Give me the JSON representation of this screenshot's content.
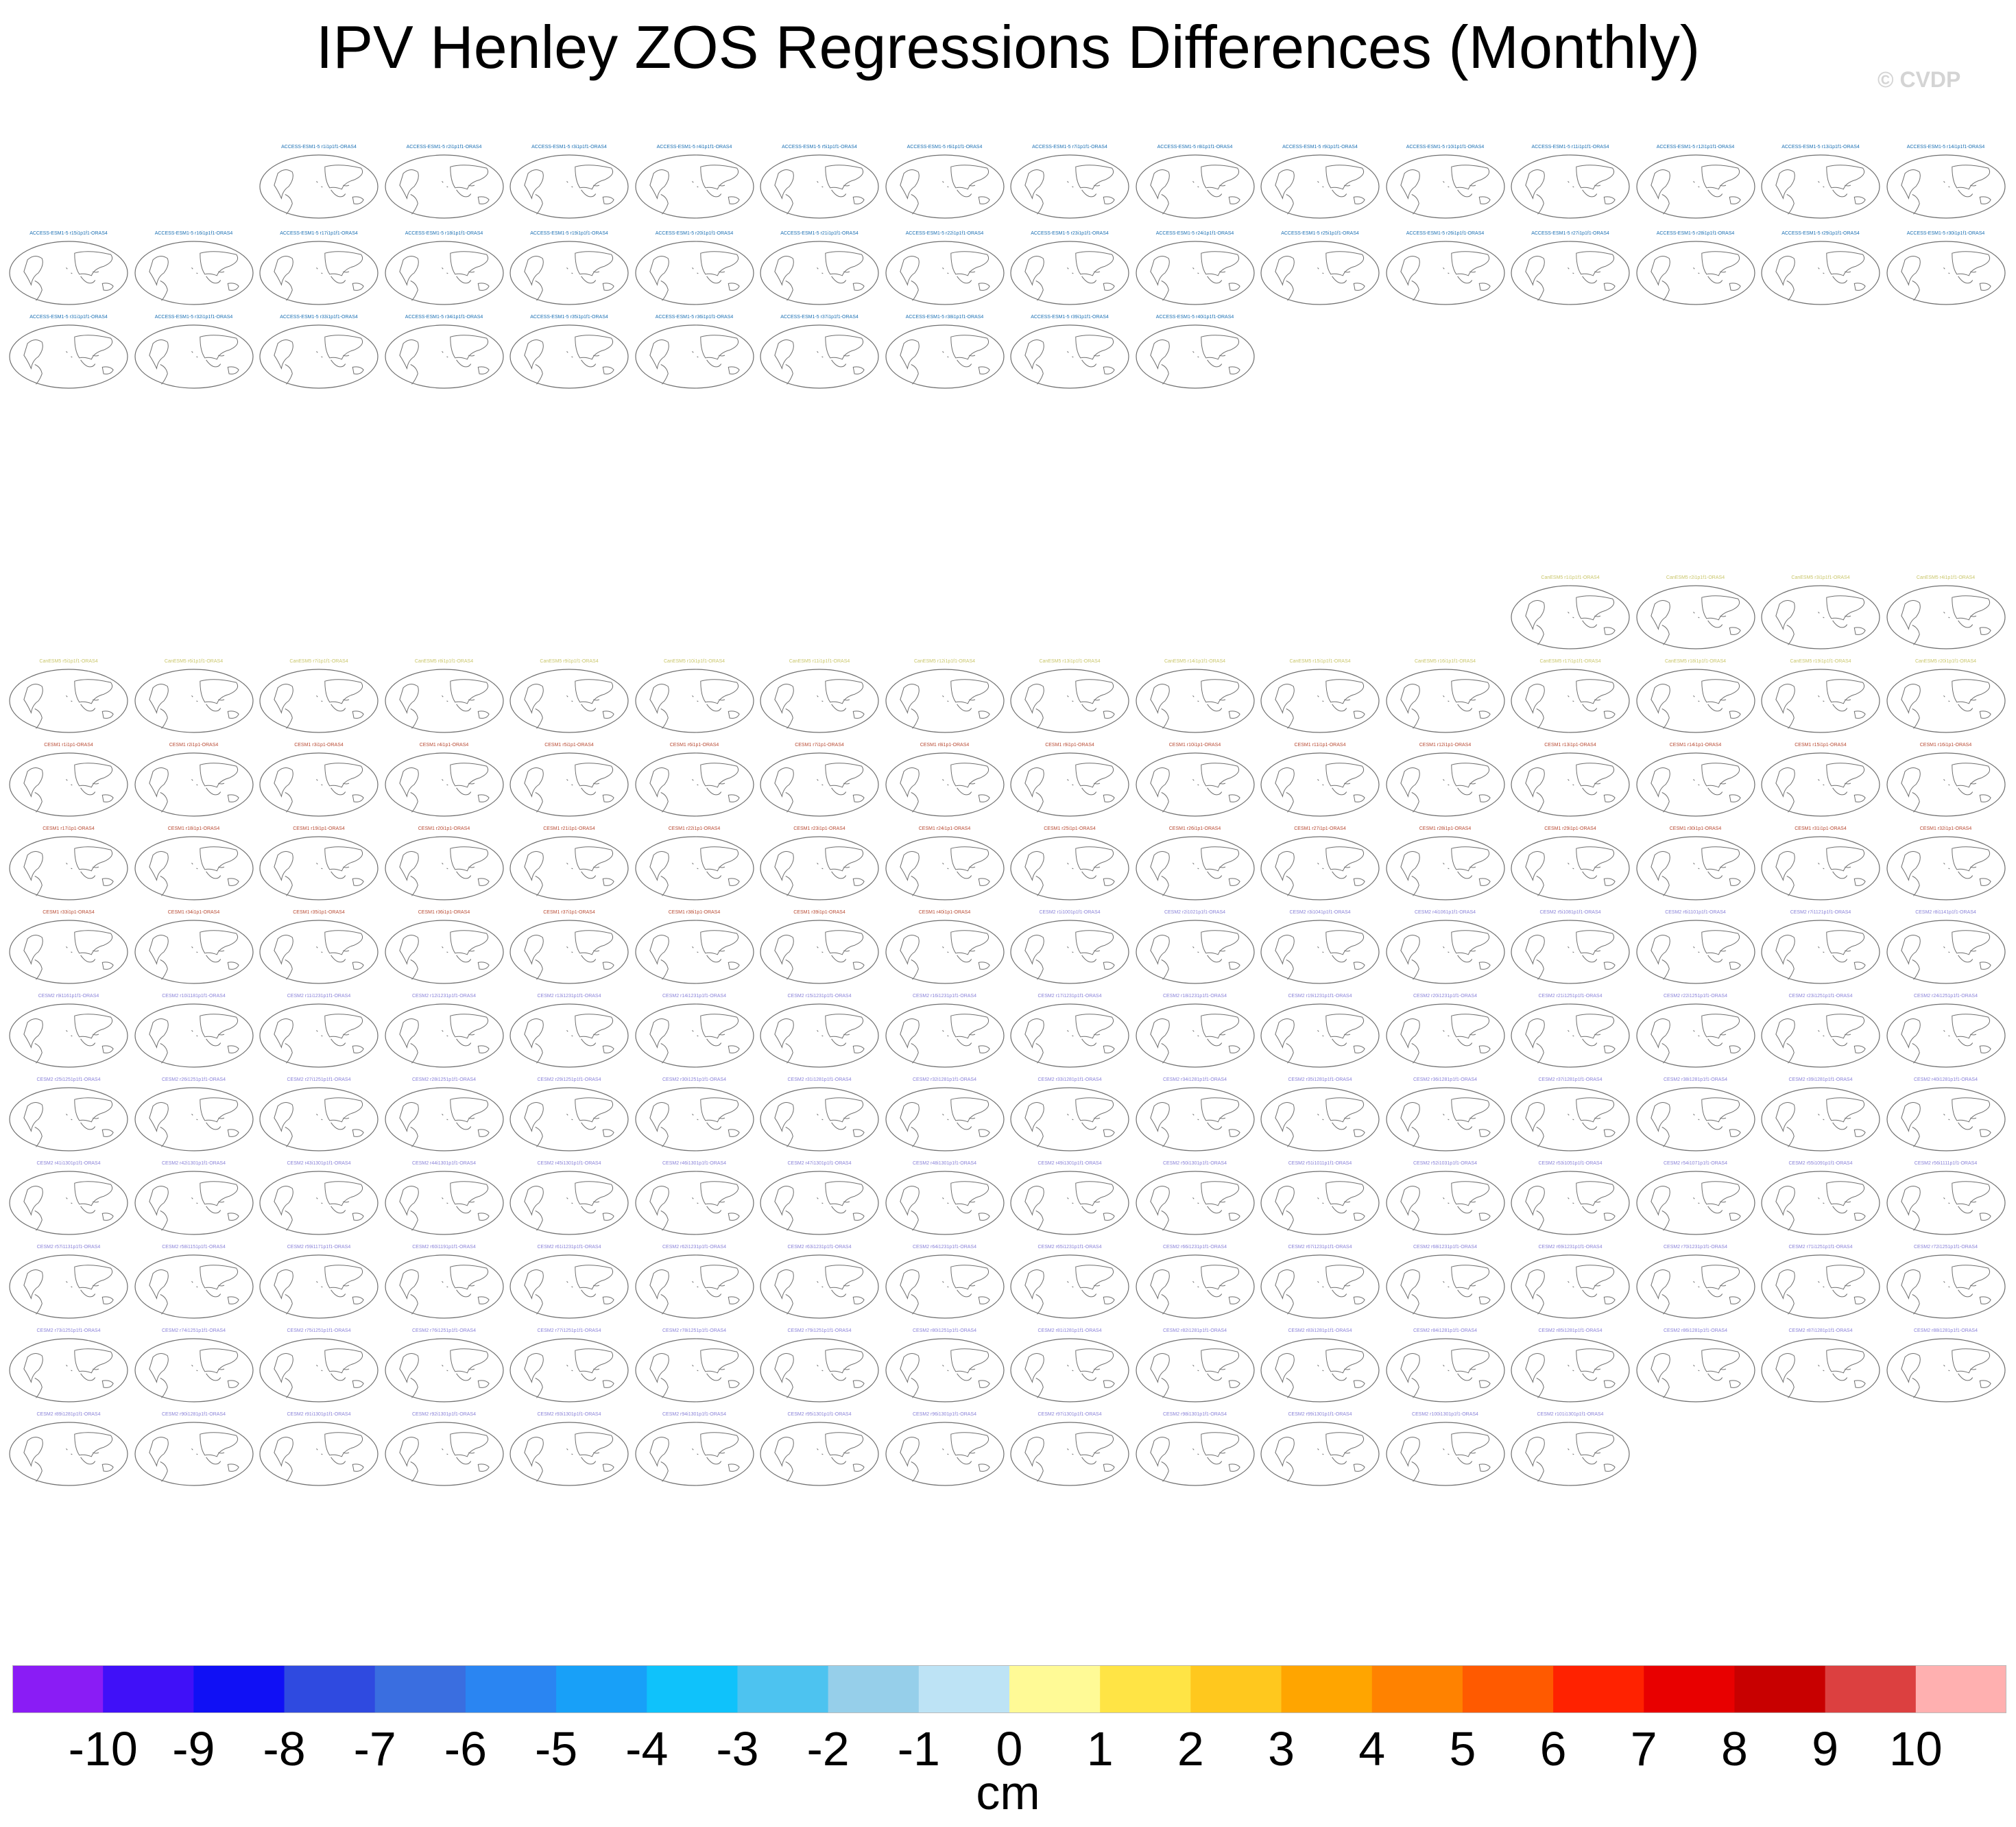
{
  "title": "IPV Henley ZOS Regressions Differences (Monthly)",
  "watermark": "© CVDP",
  "colors": {
    "access": "#1a6fb3",
    "canesm": "#c9c66a",
    "cesm1": "#b84a33",
    "cesm2": "#8a82d8",
    "coastline": "#6f6f6f"
  },
  "panel_groups": [
    {
      "model": "ACCESS-ESM1-5",
      "color_key": "access",
      "count": 40
    },
    {
      "model": "CanESM5",
      "color_key": "canesm",
      "count": 20
    },
    {
      "model": "CESM1",
      "color_key": "cesm1",
      "count": 40
    },
    {
      "model": "CESM2",
      "color_key": "cesm2",
      "count": 101
    }
  ],
  "panel_labels": [
    "ACCESS-ESM1-5 r1i1p1f1-ORAS4",
    "ACCESS-ESM1-5 r2i1p1f1-ORAS4",
    "ACCESS-ESM1-5 r3i1p1f1-ORAS4",
    "ACCESS-ESM1-5 r4i1p1f1-ORAS4",
    "ACCESS-ESM1-5 r5i1p1f1-ORAS4",
    "ACCESS-ESM1-5 r6i1p1f1-ORAS4",
    "ACCESS-ESM1-5 r7i1p1f1-ORAS4",
    "ACCESS-ESM1-5 r8i1p1f1-ORAS4",
    "ACCESS-ESM1-5 r9i1p1f1-ORAS4",
    "ACCESS-ESM1-5 r10i1p1f1-ORAS4",
    "ACCESS-ESM1-5 r11i1p1f1-ORAS4",
    "ACCESS-ESM1-5 r12i1p1f1-ORAS4",
    "ACCESS-ESM1-5 r13i1p1f1-ORAS4",
    "ACCESS-ESM1-5 r14i1p1f1-ORAS4",
    "ACCESS-ESM1-5 r15i1p1f1-ORAS4",
    "ACCESS-ESM1-5 r16i1p1f1-ORAS4",
    "ACCESS-ESM1-5 r17i1p1f1-ORAS4",
    "ACCESS-ESM1-5 r18i1p1f1-ORAS4",
    "ACCESS-ESM1-5 r19i1p1f1-ORAS4",
    "ACCESS-ESM1-5 r20i1p1f1-ORAS4",
    "ACCESS-ESM1-5 r21i1p1f1-ORAS4",
    "ACCESS-ESM1-5 r22i1p1f1-ORAS4",
    "ACCESS-ESM1-5 r23i1p1f1-ORAS4",
    "ACCESS-ESM1-5 r24i1p1f1-ORAS4",
    "ACCESS-ESM1-5 r25i1p1f1-ORAS4",
    "ACCESS-ESM1-5 r26i1p1f1-ORAS4",
    "ACCESS-ESM1-5 r27i1p1f1-ORAS4",
    "ACCESS-ESM1-5 r28i1p1f1-ORAS4",
    "ACCESS-ESM1-5 r29i1p1f1-ORAS4",
    "ACCESS-ESM1-5 r30i1p1f1-ORAS4",
    "ACCESS-ESM1-5 r31i1p1f1-ORAS4",
    "ACCESS-ESM1-5 r32i1p1f1-ORAS4",
    "ACCESS-ESM1-5 r33i1p1f1-ORAS4",
    "ACCESS-ESM1-5 r34i1p1f1-ORAS4",
    "ACCESS-ESM1-5 r35i1p1f1-ORAS4",
    "ACCESS-ESM1-5 r36i1p1f1-ORAS4",
    "ACCESS-ESM1-5 r37i1p1f1-ORAS4",
    "ACCESS-ESM1-5 r38i1p1f1-ORAS4",
    "ACCESS-ESM1-5 r39i1p1f1-ORAS4",
    "ACCESS-ESM1-5 r40i1p1f1-ORAS4",
    "CanESM5 r1i1p1f1-ORAS4",
    "CanESM5 r2i1p1f1-ORAS4",
    "CanESM5 r3i1p1f1-ORAS4",
    "CanESM5 r4i1p1f1-ORAS4",
    "CanESM5 r5i1p1f1-ORAS4",
    "CanESM5 r6i1p1f1-ORAS4",
    "CanESM5 r7i1p1f1-ORAS4",
    "CanESM5 r8i1p1f1-ORAS4",
    "CanESM5 r9i1p1f1-ORAS4",
    "CanESM5 r10i1p1f1-ORAS4",
    "CanESM5 r11i1p1f1-ORAS4",
    "CanESM5 r12i1p1f1-ORAS4",
    "CanESM5 r13i1p1f1-ORAS4",
    "CanESM5 r14i1p1f1-ORAS4",
    "CanESM5 r15i1p1f1-ORAS4",
    "CanESM5 r16i1p1f1-ORAS4",
    "CanESM5 r17i1p1f1-ORAS4",
    "CanESM5 r18i1p1f1-ORAS4",
    "CanESM5 r19i1p1f1-ORAS4",
    "CanESM5 r20i1p1f1-ORAS4",
    "CESM1 r1i1p1-ORAS4",
    "CESM1 r2i1p1-ORAS4",
    "CESM1 r3i1p1-ORAS4",
    "CESM1 r4i1p1-ORAS4",
    "CESM1 r5i1p1-ORAS4",
    "CESM1 r6i1p1-ORAS4",
    "CESM1 r7i1p1-ORAS4",
    "CESM1 r8i1p1-ORAS4",
    "CESM1 r9i1p1-ORAS4",
    "CESM1 r10i1p1-ORAS4",
    "CESM1 r11i1p1-ORAS4",
    "CESM1 r12i1p1-ORAS4",
    "CESM1 r13i1p1-ORAS4",
    "CESM1 r14i1p1-ORAS4",
    "CESM1 r15i1p1-ORAS4",
    "CESM1 r16i1p1-ORAS4",
    "CESM1 r17i1p1-ORAS4",
    "CESM1 r18i1p1-ORAS4",
    "CESM1 r19i1p1-ORAS4",
    "CESM1 r20i1p1-ORAS4",
    "CESM1 r21i1p1-ORAS4",
    "CESM1 r22i1p1-ORAS4",
    "CESM1 r23i1p1-ORAS4",
    "CESM1 r24i1p1-ORAS4",
    "CESM1 r25i1p1-ORAS4",
    "CESM1 r26i1p1-ORAS4",
    "CESM1 r27i1p1-ORAS4",
    "CESM1 r28i1p1-ORAS4",
    "CESM1 r29i1p1-ORAS4",
    "CESM1 r30i1p1-ORAS4",
    "CESM1 r31i1p1-ORAS4",
    "CESM1 r32i1p1-ORAS4",
    "CESM1 r33i1p1-ORAS4",
    "CESM1 r34i1p1-ORAS4",
    "CESM1 r35i1p1-ORAS4",
    "CESM1 r36i1p1-ORAS4",
    "CESM1 r37i1p1-ORAS4",
    "CESM1 r38i1p1-ORAS4",
    "CESM1 r39i1p1-ORAS4",
    "CESM1 r40i1p1-ORAS4",
    "CESM2 r1i1001p1f1-ORAS4",
    "CESM2 r2i1021p1f1-ORAS4",
    "CESM2 r3i1041p1f1-ORAS4",
    "CESM2 r4i1061p1f1-ORAS4",
    "CESM2 r5i1081p1f1-ORAS4",
    "CESM2 r6i1101p1f1-ORAS4",
    "CESM2 r7i1121p1f1-ORAS4",
    "CESM2 r8i1141p1f1-ORAS4",
    "CESM2 r9i1161p1f1-ORAS4",
    "CESM2 r10i1181p1f1-ORAS4",
    "CESM2 r11i1231p1f1-ORAS4",
    "CESM2 r12i1231p1f1-ORAS4",
    "CESM2 r13i1231p1f1-ORAS4",
    "CESM2 r14i1231p1f1-ORAS4",
    "CESM2 r15i1231p1f1-ORAS4",
    "CESM2 r16i1231p1f1-ORAS4",
    "CESM2 r17i1231p1f1-ORAS4",
    "CESM2 r18i1231p1f1-ORAS4",
    "CESM2 r19i1231p1f1-ORAS4",
    "CESM2 r20i1231p1f1-ORAS4",
    "CESM2 r21i1251p1f1-ORAS4",
    "CESM2 r22i1251p1f1-ORAS4",
    "CESM2 r23i1251p1f1-ORAS4",
    "CESM2 r24i1251p1f1-ORAS4",
    "CESM2 r25i1251p1f1-ORAS4",
    "CESM2 r26i1251p1f1-ORAS4",
    "CESM2 r27i1251p1f1-ORAS4",
    "CESM2 r28i1251p1f1-ORAS4",
    "CESM2 r29i1251p1f1-ORAS4",
    "CESM2 r30i1251p1f1-ORAS4",
    "CESM2 r31i1281p1f1-ORAS4",
    "CESM2 r32i1281p1f1-ORAS4",
    "CESM2 r33i1281p1f1-ORAS4",
    "CESM2 r34i1281p1f1-ORAS4",
    "CESM2 r35i1281p1f1-ORAS4",
    "CESM2 r36i1281p1f1-ORAS4",
    "CESM2 r37i1281p1f1-ORAS4",
    "CESM2 r38i1281p1f1-ORAS4",
    "CESM2 r39i1281p1f1-ORAS4",
    "CESM2 r40i1281p1f1-ORAS4",
    "CESM2 r41i1301p1f1-ORAS4",
    "CESM2 r42i1301p1f1-ORAS4",
    "CESM2 r43i1301p1f1-ORAS4",
    "CESM2 r44i1301p1f1-ORAS4",
    "CESM2 r45i1301p1f1-ORAS4",
    "CESM2 r46i1301p1f1-ORAS4",
    "CESM2 r47i1301p1f1-ORAS4",
    "CESM2 r48i1301p1f1-ORAS4",
    "CESM2 r49i1301p1f1-ORAS4",
    "CESM2 r50i1301p1f1-ORAS4",
    "CESM2 r51i1011p1f1-ORAS4",
    "CESM2 r52i1031p1f1-ORAS4",
    "CESM2 r53i1051p1f1-ORAS4",
    "CESM2 r54i1071p1f1-ORAS4",
    "CESM2 r55i1091p1f1-ORAS4",
    "CESM2 r56i1111p1f1-ORAS4",
    "CESM2 r57i1131p1f1-ORAS4",
    "CESM2 r58i1151p1f1-ORAS4",
    "CESM2 r59i1171p1f1-ORAS4",
    "CESM2 r60i1191p1f1-ORAS4",
    "CESM2 r61i1231p1f1-ORAS4",
    "CESM2 r62i1231p1f1-ORAS4",
    "CESM2 r63i1231p1f1-ORAS4",
    "CESM2 r64i1231p1f1-ORAS4",
    "CESM2 r65i1231p1f1-ORAS4",
    "CESM2 r66i1231p1f1-ORAS4",
    "CESM2 r67i1231p1f1-ORAS4",
    "CESM2 r68i1231p1f1-ORAS4",
    "CESM2 r69i1231p1f1-ORAS4",
    "CESM2 r70i1231p1f1-ORAS4",
    "CESM2 r71i1251p1f1-ORAS4",
    "CESM2 r72i1251p1f1-ORAS4",
    "CESM2 r73i1251p1f1-ORAS4",
    "CESM2 r74i1251p1f1-ORAS4",
    "CESM2 r75i1251p1f1-ORAS4",
    "CESM2 r76i1251p1f1-ORAS4",
    "CESM2 r77i1251p1f1-ORAS4",
    "CESM2 r78i1251p1f1-ORAS4",
    "CESM2 r79i1251p1f1-ORAS4",
    "CESM2 r80i1251p1f1-ORAS4",
    "CESM2 r81i1281p1f1-ORAS4",
    "CESM2 r82i1281p1f1-ORAS4",
    "CESM2 r83i1281p1f1-ORAS4",
    "CESM2 r84i1281p1f1-ORAS4",
    "CESM2 r85i1281p1f1-ORAS4",
    "CESM2 r86i1281p1f1-ORAS4",
    "CESM2 r87i1281p1f1-ORAS4",
    "CESM2 r88i1281p1f1-ORAS4",
    "CESM2 r89i1281p1f1-ORAS4",
    "CESM2 r90i1281p1f1-ORAS4",
    "CESM2 r91i1301p1f1-ORAS4",
    "CESM2 r92i1301p1f1-ORAS4",
    "CESM2 r93i1301p1f1-ORAS4",
    "CESM2 r94i1301p1f1-ORAS4",
    "CESM2 r95i1301p1f1-ORAS4",
    "CESM2 r96i1301p1f1-ORAS4",
    "CESM2 r97i1301p1f1-ORAS4",
    "CESM2 r98i1301p1f1-ORAS4",
    "CESM2 r99i1301p1f1-ORAS4",
    "CESM2 r100i1301p1f1-ORAS4",
    "CESM2 r101i1301p1f1-ORAS4"
  ],
  "colorbar": {
    "unit": "cm",
    "tick_labels": [
      "-10",
      "-9",
      "-8",
      "-7",
      "-6",
      "-5",
      "-4",
      "-3",
      "-2",
      "-1",
      "0",
      "1",
      "2",
      "3",
      "4",
      "5",
      "6",
      "7",
      "8",
      "9",
      "10"
    ],
    "colors": [
      "#8a1cf5",
      "#4010f8",
      "#1010f5",
      "#2f4ae0",
      "#3a6ee0",
      "#2a85f2",
      "#18a0f8",
      "#0fc2fb",
      "#4dc3f0",
      "#96cfea",
      "#bde3f5",
      "#fffa96",
      "#ffe445",
      "#ffc81e",
      "#ffa500",
      "#ff8200",
      "#ff5a00",
      "#ff2200",
      "#e80000",
      "#c80000",
      "#dc4040",
      "#ffb0b0"
    ]
  }
}
